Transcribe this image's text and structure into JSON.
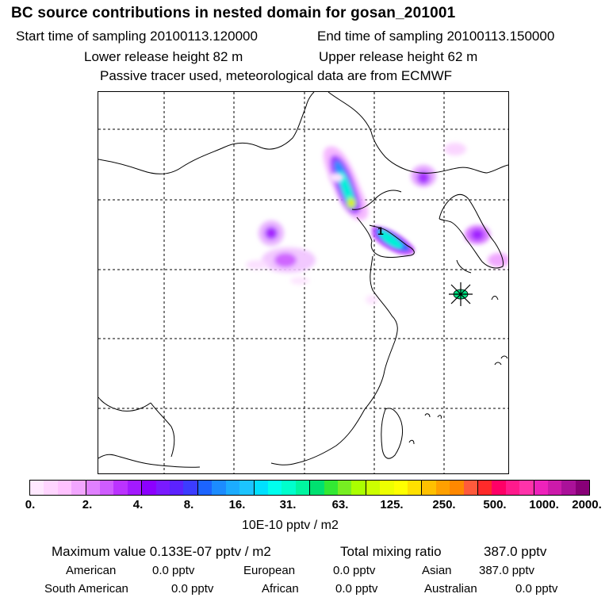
{
  "header": {
    "title": "BC  source contributions in nested domain for gosan_201001",
    "start_label": "Start time of sampling 20100113.120000",
    "end_label": "End time of sampling 20100113.150000",
    "lower_label": "Lower release height   82 m",
    "upper_label": "Upper release height   62 m",
    "note": "Passive tracer used, meteorological data are from ECMWF"
  },
  "map": {
    "receptor_marker": "star-icon",
    "label_1": "1"
  },
  "colorbar": {
    "colors": [
      "#ffe8ff",
      "#ffd5ff",
      "#ffc2ff",
      "#f2a6ff",
      "#e080ff",
      "#cf5cff",
      "#bb33ff",
      "#a31aff",
      "#8c00ff",
      "#7a1aff",
      "#5c22ff",
      "#3c3cff",
      "#1c64ff",
      "#1c8cff",
      "#1cacff",
      "#1cc4ff",
      "#00e0ff",
      "#00ffee",
      "#00ffcc",
      "#00f5a0",
      "#00e070",
      "#33e833",
      "#77ee22",
      "#aaff00",
      "#ccff00",
      "#eeff00",
      "#ffff00",
      "#ffe000",
      "#ffc000",
      "#ffa000",
      "#ff8800",
      "#ff5a3c",
      "#ff2a2a",
      "#ff0066",
      "#ff1a8c",
      "#ff33aa",
      "#ee22bb",
      "#cc1aaa",
      "#aa1199",
      "#880077"
    ],
    "tick_labels": [
      "0.",
      "2.",
      "4.",
      "8.",
      "16.",
      "31.",
      "63.",
      "125.",
      "250.",
      "500.",
      "1000.",
      "2000."
    ],
    "units": "10E-10 pptv / m2"
  },
  "stats": {
    "max_label": "Maximum value  0.133E-07 pptv / m2",
    "total_label": "Total mixing ratio",
    "total_value": "387.0 pptv",
    "american_label": "American",
    "american_value": "0.0 pptv",
    "european_label": "European",
    "european_value": "0.0 pptv",
    "asian_label": "Asian",
    "asian_value": "387.0 pptv",
    "south_american_label": "South American",
    "south_american_value": "0.0 pptv",
    "african_label": "African",
    "african_value": "0.0 pptv",
    "australian_label": "Australian",
    "australian_value": "0.0 pptv"
  }
}
